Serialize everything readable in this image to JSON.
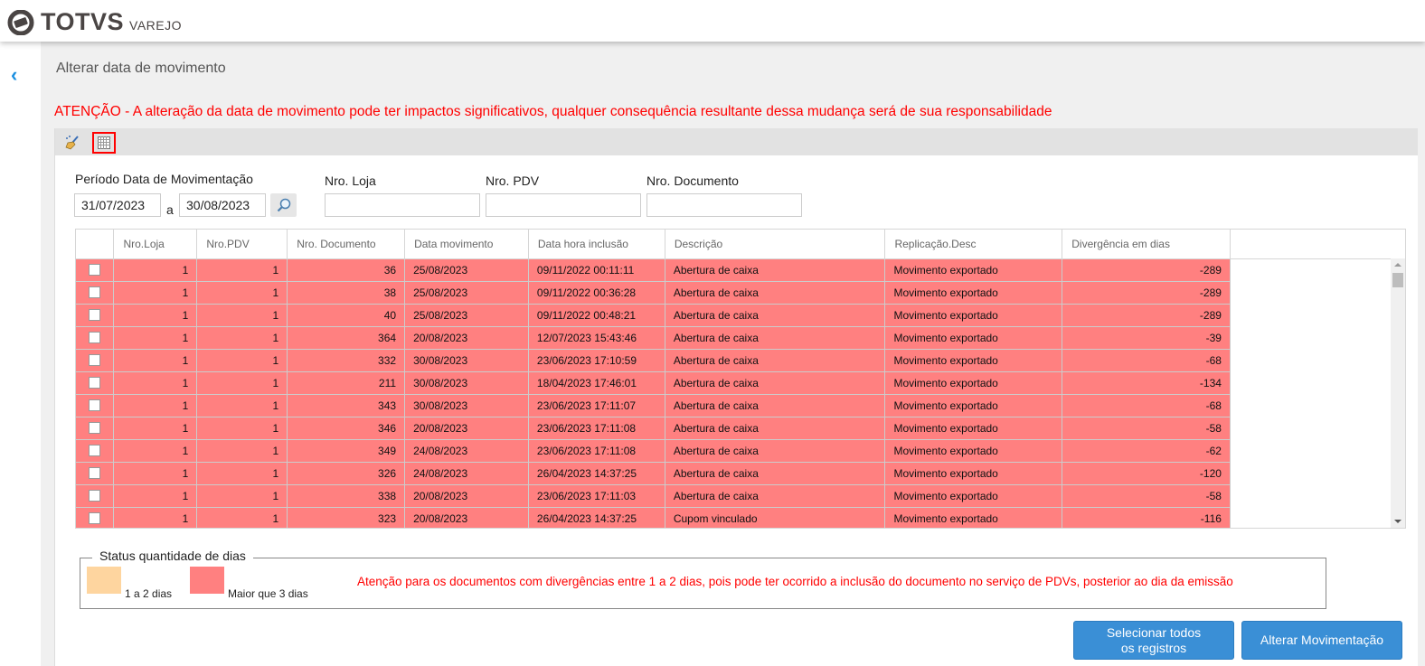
{
  "app": {
    "brand": "TOTVS",
    "product": "VAREJO"
  },
  "page": {
    "title": "Alterar data de movimento",
    "warning": "ATENÇÃO - A alteração da data de movimento pode ter impactos significativos, qualquer consequência resultante dessa mudança será de sua responsabilidade"
  },
  "toolbar": {
    "icons": [
      "broom-icon",
      "grid-icon"
    ]
  },
  "filters": {
    "period_label": "Período Data de Movimentação",
    "date_from": "31/07/2023",
    "separator": "a",
    "date_to": "30/08/2023",
    "loja_label": "Nro. Loja",
    "loja_value": "",
    "pdv_label": "Nro. PDV",
    "pdv_value": "",
    "doc_label": "Nro. Documento",
    "doc_value": ""
  },
  "table": {
    "columns": [
      "Nro.Loja",
      "Nro.PDV",
      "Nro. Documento",
      "Data movimento",
      "Data hora inclusão",
      "Descrição",
      "Replicação.Desc",
      "Divergência em dias"
    ],
    "row_color": "#ff8080",
    "rows": [
      [
        "1",
        "1",
        "36",
        "25/08/2023",
        "09/11/2022 00:11:11",
        "Abertura de caixa",
        "Movimento exportado",
        "-289"
      ],
      [
        "1",
        "1",
        "38",
        "25/08/2023",
        "09/11/2022 00:36:28",
        "Abertura de caixa",
        "Movimento exportado",
        "-289"
      ],
      [
        "1",
        "1",
        "40",
        "25/08/2023",
        "09/11/2022 00:48:21",
        "Abertura de caixa",
        "Movimento exportado",
        "-289"
      ],
      [
        "1",
        "1",
        "364",
        "20/08/2023",
        "12/07/2023 15:43:46",
        "Abertura de caixa",
        "Movimento exportado",
        "-39"
      ],
      [
        "1",
        "1",
        "332",
        "30/08/2023",
        "23/06/2023 17:10:59",
        "Abertura de caixa",
        "Movimento exportado",
        "-68"
      ],
      [
        "1",
        "1",
        "211",
        "30/08/2023",
        "18/04/2023 17:46:01",
        "Abertura de caixa",
        "Movimento exportado",
        "-134"
      ],
      [
        "1",
        "1",
        "343",
        "30/08/2023",
        "23/06/2023 17:11:07",
        "Abertura de caixa",
        "Movimento exportado",
        "-68"
      ],
      [
        "1",
        "1",
        "346",
        "20/08/2023",
        "23/06/2023 17:11:08",
        "Abertura de caixa",
        "Movimento exportado",
        "-58"
      ],
      [
        "1",
        "1",
        "349",
        "24/08/2023",
        "23/06/2023 17:11:08",
        "Abertura de caixa",
        "Movimento exportado",
        "-62"
      ],
      [
        "1",
        "1",
        "326",
        "24/08/2023",
        "26/04/2023 14:37:25",
        "Abertura de caixa",
        "Movimento exportado",
        "-120"
      ],
      [
        "1",
        "1",
        "338",
        "20/08/2023",
        "23/06/2023 17:11:03",
        "Abertura de caixa",
        "Movimento exportado",
        "-58"
      ],
      [
        "1",
        "1",
        "323",
        "20/08/2023",
        "26/04/2023 14:37:25",
        "Cupom vinculado",
        "Movimento exportado",
        "-116"
      ]
    ]
  },
  "legend": {
    "title": "Status quantidade de dias",
    "items": [
      {
        "label": "1 a 2 dias",
        "color": "#fed59f"
      },
      {
        "label": "Maior que 3 dias",
        "color": "#ff8080"
      }
    ],
    "warning": "Atenção para os documentos com divergências entre 1 a 2 dias, pois pode ter ocorrido a inclusão do documento no serviço de PDVs, posterior ao dia da emissão"
  },
  "buttons": {
    "select_all_line1": "Selecionar todos",
    "select_all_line2": "os registros",
    "change": "Alterar Movimentação"
  }
}
